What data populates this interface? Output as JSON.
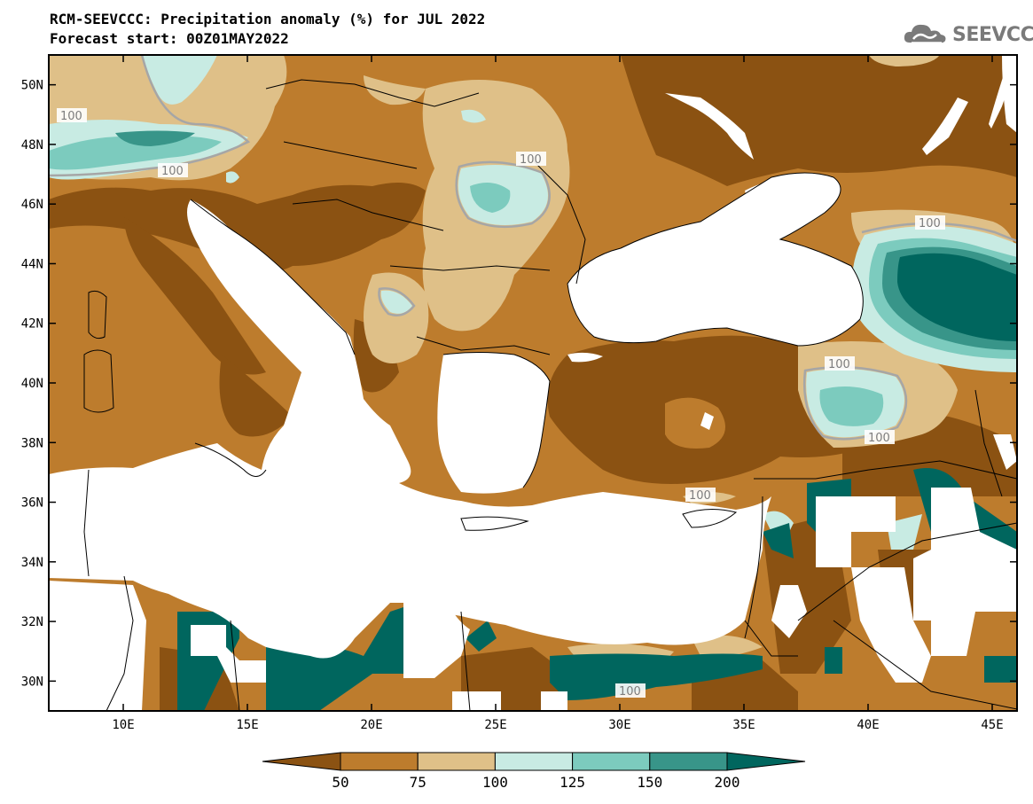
{
  "header": {
    "title": "RCM-SEEVCCC: Precipitation anomaly (%) for JUL 2022",
    "subtitle": "Forecast start: 00Z01MAY2022",
    "logo_text": "SEEVCCC",
    "logo_icon": "cloud-icon"
  },
  "map": {
    "lon_range": [
      7,
      46
    ],
    "lat_range": [
      29,
      51
    ],
    "lat_ticks": [
      "50N",
      "48N",
      "46N",
      "44N",
      "42N",
      "40N",
      "38N",
      "36N",
      "34N",
      "32N",
      "30N"
    ],
    "lon_ticks": [
      "10E",
      "15E",
      "20E",
      "25E",
      "30E",
      "35E",
      "40E",
      "45E"
    ],
    "contour_labels": [
      "100",
      "100",
      "100",
      "100",
      "100",
      "100",
      "100",
      "100"
    ]
  },
  "colorbar": {
    "labels": [
      "50",
      "75",
      "100",
      "125",
      "150",
      "200"
    ],
    "colors": [
      "#8b5212",
      "#bd7c2d",
      "#dfc088",
      "#c8ebe3",
      "#7ccbbe",
      "#389589",
      "#00665e"
    ]
  }
}
